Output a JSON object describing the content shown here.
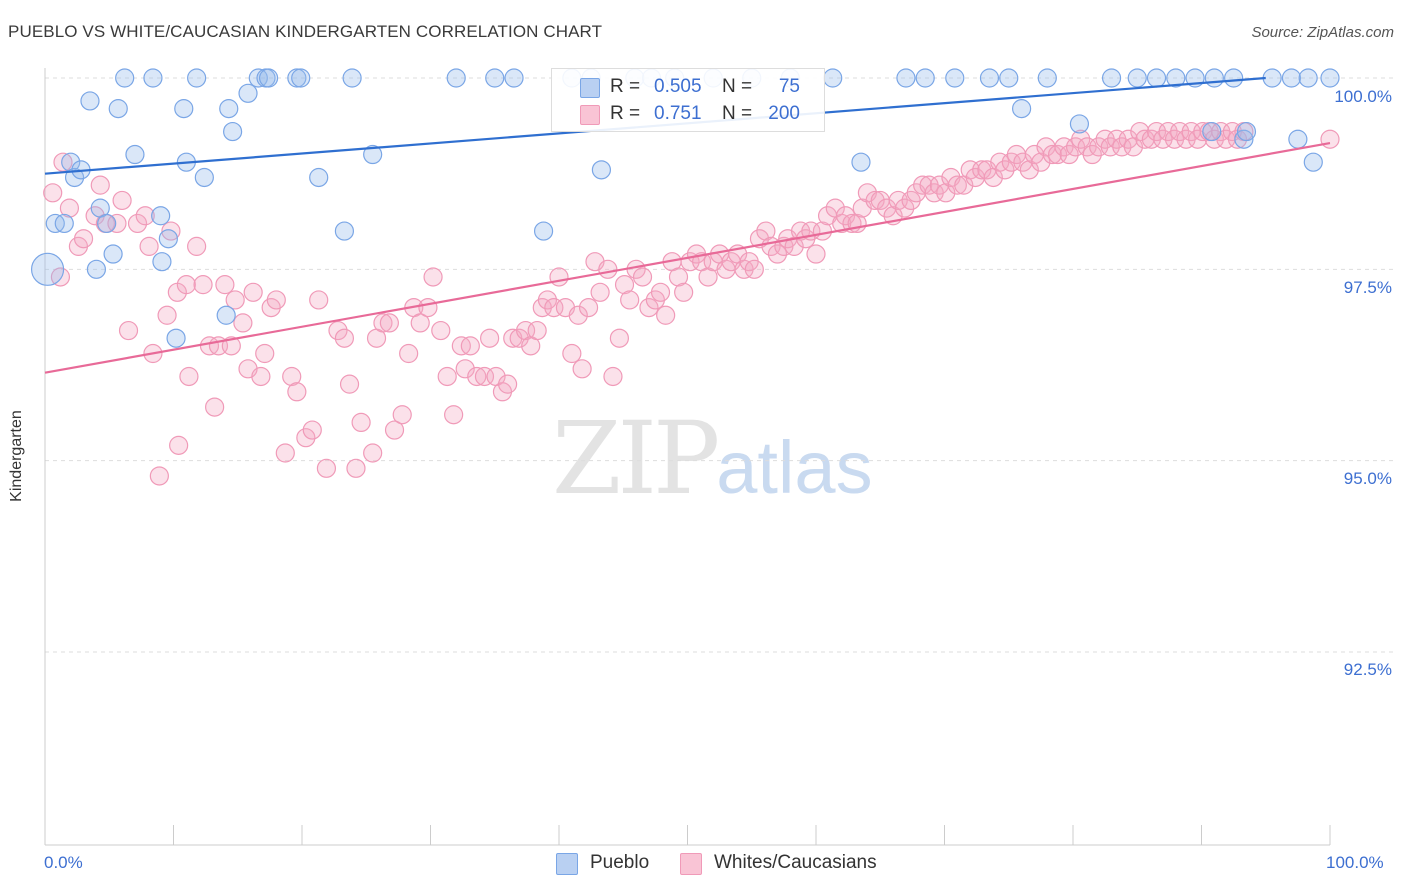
{
  "header": {
    "title": "PUEBLO VS WHITE/CAUCASIAN KINDERGARTEN CORRELATION CHART",
    "source": "Source: ZipAtlas.com"
  },
  "watermark": {
    "zip": "ZIP",
    "atlas": "atlas"
  },
  "legend": {
    "r_label": "R =",
    "n_label": "N =",
    "pueblo": {
      "r": "0.505",
      "n": "75",
      "color": "#7aa6e6"
    },
    "whites": {
      "r": "0.751",
      "n": "200",
      "color": "#f09ab8"
    }
  },
  "bottom_legend": {
    "pueblo": "Pueblo",
    "whites": "Whites/Caucasians"
  },
  "chart_data": {
    "type": "scatter",
    "xlabel": "",
    "ylabel": "Kindergarten",
    "xlim": [
      0,
      100
    ],
    "ylim": [
      90,
      100.25
    ],
    "x_tick_labels": [
      "0.0%",
      "100.0%"
    ],
    "y_ticks": [
      100.0,
      97.5,
      95.0,
      92.5
    ],
    "y_tick_labels": [
      "100.0%",
      "97.5%",
      "95.0%",
      "92.5%"
    ],
    "grid": true,
    "series": [
      {
        "name": "Pueblo",
        "color": "#7aa6e6",
        "trend": [
          [
            0,
            98.75
          ],
          [
            95,
            100.0
          ]
        ],
        "points": [
          [
            0.2,
            97.5
          ],
          [
            0.8,
            98.1
          ],
          [
            1.5,
            98.1
          ],
          [
            2.0,
            98.9
          ],
          [
            2.3,
            98.7
          ],
          [
            2.8,
            98.8
          ],
          [
            3.5,
            99.7
          ],
          [
            4.0,
            97.5
          ],
          [
            4.3,
            98.3
          ],
          [
            4.8,
            98.1
          ],
          [
            5.3,
            97.7
          ],
          [
            5.7,
            99.6
          ],
          [
            6.2,
            100.0
          ],
          [
            7.0,
            99.0
          ],
          [
            8.4,
            100.0
          ],
          [
            9.0,
            98.2
          ],
          [
            9.1,
            97.6
          ],
          [
            9.6,
            97.9
          ],
          [
            10.2,
            96.6
          ],
          [
            10.8,
            99.6
          ],
          [
            11.0,
            98.9
          ],
          [
            11.8,
            100.0
          ],
          [
            12.4,
            98.7
          ],
          [
            14.1,
            96.9
          ],
          [
            14.3,
            99.6
          ],
          [
            14.6,
            99.3
          ],
          [
            15.8,
            99.8
          ],
          [
            16.6,
            100.0
          ],
          [
            17.2,
            100.0
          ],
          [
            17.4,
            100.0
          ],
          [
            19.6,
            100.0
          ],
          [
            19.9,
            100.0
          ],
          [
            21.3,
            98.7
          ],
          [
            23.3,
            98.0
          ],
          [
            23.9,
            100.0
          ],
          [
            25.5,
            99.0
          ],
          [
            32.0,
            100.0
          ],
          [
            35.0,
            100.0
          ],
          [
            36.5,
            100.0
          ],
          [
            38.8,
            98.0
          ],
          [
            41.0,
            100.0
          ],
          [
            42.5,
            100.0
          ],
          [
            43.3,
            98.8
          ],
          [
            45.9,
            100.0
          ],
          [
            47.2,
            100.0
          ],
          [
            49.0,
            100.0
          ],
          [
            52.0,
            100.0
          ],
          [
            55.0,
            100.0
          ],
          [
            58.0,
            100.0
          ],
          [
            61.3,
            100.0
          ],
          [
            63.5,
            98.9
          ],
          [
            67.0,
            100.0
          ],
          [
            68.5,
            100.0
          ],
          [
            70.8,
            100.0
          ],
          [
            73.5,
            100.0
          ],
          [
            75.0,
            100.0
          ],
          [
            76.0,
            99.6
          ],
          [
            78.0,
            100.0
          ],
          [
            80.5,
            99.4
          ],
          [
            83.0,
            100.0
          ],
          [
            85.0,
            100.0
          ],
          [
            86.5,
            100.0
          ],
          [
            88.0,
            100.0
          ],
          [
            89.5,
            100.0
          ],
          [
            90.8,
            99.3
          ],
          [
            91.0,
            100.0
          ],
          [
            92.5,
            100.0
          ],
          [
            93.3,
            99.2
          ],
          [
            93.5,
            99.3
          ],
          [
            95.5,
            100.0
          ],
          [
            97.0,
            100.0
          ],
          [
            97.5,
            99.2
          ],
          [
            98.3,
            100.0
          ],
          [
            98.7,
            98.9
          ],
          [
            100.0,
            100.0
          ]
        ]
      },
      {
        "name": "Whites/Caucasians",
        "color": "#f09ab8",
        "trend": [
          [
            0,
            96.15
          ],
          [
            100,
            99.15
          ]
        ],
        "points": [
          [
            0.6,
            98.5
          ],
          [
            1.2,
            97.4
          ],
          [
            1.4,
            98.9
          ],
          [
            1.9,
            98.3
          ],
          [
            2.6,
            97.8
          ],
          [
            3.0,
            97.9
          ],
          [
            3.9,
            98.2
          ],
          [
            4.3,
            98.6
          ],
          [
            4.7,
            98.1
          ],
          [
            5.6,
            98.1
          ],
          [
            6.0,
            98.4
          ],
          [
            6.5,
            96.7
          ],
          [
            7.2,
            98.1
          ],
          [
            7.8,
            98.2
          ],
          [
            8.1,
            97.8
          ],
          [
            8.4,
            96.4
          ],
          [
            8.9,
            94.8
          ],
          [
            9.5,
            96.9
          ],
          [
            9.8,
            98.0
          ],
          [
            10.3,
            97.2
          ],
          [
            10.4,
            95.2
          ],
          [
            11.0,
            97.3
          ],
          [
            11.2,
            96.1
          ],
          [
            11.8,
            97.8
          ],
          [
            12.3,
            97.3
          ],
          [
            12.8,
            96.5
          ],
          [
            13.2,
            95.7
          ],
          [
            13.5,
            96.5
          ],
          [
            14.0,
            97.3
          ],
          [
            14.5,
            96.5
          ],
          [
            14.8,
            97.1
          ],
          [
            15.4,
            96.8
          ],
          [
            15.8,
            96.2
          ],
          [
            16.2,
            97.2
          ],
          [
            16.8,
            96.1
          ],
          [
            17.1,
            96.4
          ],
          [
            17.6,
            97.0
          ],
          [
            18.0,
            97.1
          ],
          [
            18.7,
            95.1
          ],
          [
            19.2,
            96.1
          ],
          [
            19.6,
            95.9
          ],
          [
            20.3,
            95.3
          ],
          [
            20.8,
            95.4
          ],
          [
            21.3,
            97.1
          ],
          [
            21.9,
            94.9
          ],
          [
            22.8,
            96.7
          ],
          [
            23.3,
            96.6
          ],
          [
            23.7,
            96.0
          ],
          [
            24.2,
            94.9
          ],
          [
            24.6,
            95.5
          ],
          [
            25.5,
            95.1
          ],
          [
            25.8,
            96.6
          ],
          [
            26.3,
            96.8
          ],
          [
            26.8,
            96.8
          ],
          [
            27.2,
            95.4
          ],
          [
            27.8,
            95.6
          ],
          [
            28.3,
            96.4
          ],
          [
            28.7,
            97.0
          ],
          [
            29.2,
            96.8
          ],
          [
            29.8,
            97.0
          ],
          [
            30.2,
            97.4
          ],
          [
            30.8,
            96.7
          ],
          [
            31.3,
            96.1
          ],
          [
            31.8,
            95.6
          ],
          [
            32.4,
            96.5
          ],
          [
            32.7,
            96.2
          ],
          [
            33.1,
            96.5
          ],
          [
            33.6,
            96.1
          ],
          [
            34.2,
            96.1
          ],
          [
            34.6,
            96.6
          ],
          [
            35.1,
            96.1
          ],
          [
            35.6,
            95.9
          ],
          [
            36.0,
            96.0
          ],
          [
            36.4,
            96.6
          ],
          [
            36.9,
            96.6
          ],
          [
            37.4,
            96.7
          ],
          [
            37.8,
            96.5
          ],
          [
            38.3,
            96.7
          ],
          [
            38.7,
            97.0
          ],
          [
            39.1,
            97.1
          ],
          [
            39.6,
            97.0
          ],
          [
            40.0,
            97.4
          ],
          [
            40.5,
            97.0
          ],
          [
            41.0,
            96.4
          ],
          [
            41.5,
            96.9
          ],
          [
            41.8,
            96.2
          ],
          [
            42.3,
            97.0
          ],
          [
            42.8,
            97.6
          ],
          [
            43.2,
            97.2
          ],
          [
            43.8,
            97.5
          ],
          [
            44.2,
            96.1
          ],
          [
            44.7,
            96.6
          ],
          [
            45.1,
            97.3
          ],
          [
            45.5,
            97.1
          ],
          [
            46.0,
            97.5
          ],
          [
            46.5,
            97.4
          ],
          [
            47.0,
            97.0
          ],
          [
            47.5,
            97.1
          ],
          [
            47.9,
            97.2
          ],
          [
            48.3,
            96.9
          ],
          [
            48.8,
            97.6
          ],
          [
            49.3,
            97.4
          ],
          [
            49.7,
            97.2
          ],
          [
            50.2,
            97.6
          ],
          [
            50.7,
            97.7
          ],
          [
            51.1,
            97.6
          ],
          [
            51.6,
            97.4
          ],
          [
            52.0,
            97.6
          ],
          [
            52.5,
            97.7
          ],
          [
            53.0,
            97.5
          ],
          [
            53.4,
            97.6
          ],
          [
            53.9,
            97.7
          ],
          [
            54.4,
            97.5
          ],
          [
            54.8,
            97.6
          ],
          [
            55.2,
            97.5
          ],
          [
            55.6,
            97.9
          ],
          [
            56.1,
            98.0
          ],
          [
            56.5,
            97.8
          ],
          [
            57.0,
            97.7
          ],
          [
            57.5,
            97.8
          ],
          [
            57.8,
            97.9
          ],
          [
            58.3,
            97.8
          ],
          [
            58.8,
            98.0
          ],
          [
            59.2,
            97.9
          ],
          [
            59.6,
            98.0
          ],
          [
            60.0,
            97.7
          ],
          [
            60.5,
            98.0
          ],
          [
            60.9,
            98.2
          ],
          [
            61.5,
            98.3
          ],
          [
            62.0,
            98.1
          ],
          [
            62.3,
            98.2
          ],
          [
            62.8,
            98.1
          ],
          [
            63.2,
            98.1
          ],
          [
            63.6,
            98.3
          ],
          [
            64.0,
            98.5
          ],
          [
            64.6,
            98.4
          ],
          [
            65.0,
            98.4
          ],
          [
            65.5,
            98.3
          ],
          [
            66.0,
            98.2
          ],
          [
            66.4,
            98.4
          ],
          [
            66.9,
            98.3
          ],
          [
            67.4,
            98.4
          ],
          [
            67.8,
            98.5
          ],
          [
            68.3,
            98.6
          ],
          [
            68.8,
            98.6
          ],
          [
            69.2,
            98.5
          ],
          [
            69.6,
            98.6
          ],
          [
            70.1,
            98.5
          ],
          [
            70.5,
            98.7
          ],
          [
            71.0,
            98.6
          ],
          [
            71.5,
            98.6
          ],
          [
            72.0,
            98.8
          ],
          [
            72.4,
            98.7
          ],
          [
            72.9,
            98.8
          ],
          [
            73.3,
            98.8
          ],
          [
            73.8,
            98.7
          ],
          [
            74.3,
            98.9
          ],
          [
            74.7,
            98.8
          ],
          [
            75.2,
            98.9
          ],
          [
            75.6,
            99.0
          ],
          [
            76.1,
            98.9
          ],
          [
            76.6,
            98.8
          ],
          [
            77.0,
            99.0
          ],
          [
            77.5,
            98.9
          ],
          [
            77.9,
            99.1
          ],
          [
            78.4,
            99.0
          ],
          [
            78.8,
            99.0
          ],
          [
            79.3,
            99.1
          ],
          [
            79.7,
            99.0
          ],
          [
            80.2,
            99.1
          ],
          [
            80.6,
            99.2
          ],
          [
            81.1,
            99.1
          ],
          [
            81.5,
            99.0
          ],
          [
            82.0,
            99.1
          ],
          [
            82.5,
            99.2
          ],
          [
            82.9,
            99.1
          ],
          [
            83.4,
            99.2
          ],
          [
            83.8,
            99.1
          ],
          [
            84.3,
            99.2
          ],
          [
            84.7,
            99.1
          ],
          [
            85.2,
            99.3
          ],
          [
            85.6,
            99.2
          ],
          [
            86.1,
            99.2
          ],
          [
            86.5,
            99.3
          ],
          [
            87.0,
            99.2
          ],
          [
            87.4,
            99.3
          ],
          [
            87.9,
            99.2
          ],
          [
            88.3,
            99.3
          ],
          [
            88.8,
            99.2
          ],
          [
            89.2,
            99.3
          ],
          [
            89.7,
            99.2
          ],
          [
            90.1,
            99.3
          ],
          [
            90.6,
            99.3
          ],
          [
            91.0,
            99.2
          ],
          [
            91.5,
            99.3
          ],
          [
            91.9,
            99.2
          ],
          [
            92.4,
            99.3
          ],
          [
            92.8,
            99.2
          ],
          [
            93.3,
            99.3
          ],
          [
            100.0,
            99.2
          ]
        ]
      }
    ]
  }
}
